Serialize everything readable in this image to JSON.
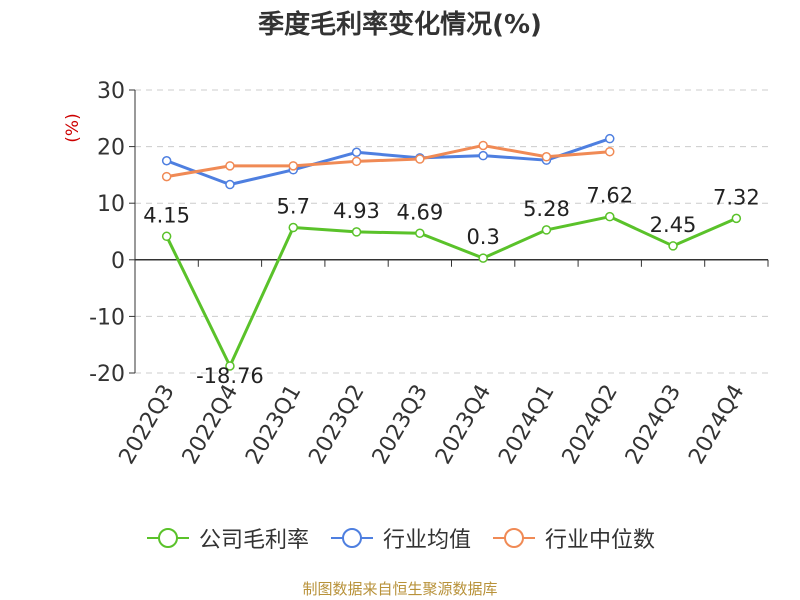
{
  "title": "季度毛利率变化情况(%)",
  "source": "制图数据来自恒生聚源数据库",
  "colors": {
    "company": "#5ac22a",
    "industry_avg": "#4e7fe0",
    "industry_median": "#f08a55",
    "unit_label": "#cc0000",
    "source": "#b8923a"
  },
  "chart_data": {
    "type": "line",
    "title": "季度毛利率变化情况(%)",
    "ylabel": "(%)",
    "xlabel": "",
    "ylim": [
      -20,
      30
    ],
    "yticks": [
      -20,
      -10,
      0,
      10,
      20,
      30
    ],
    "grid": true,
    "legend_position": "bottom",
    "categories": [
      "2022Q3",
      "2022Q4",
      "2023Q1",
      "2023Q2",
      "2023Q3",
      "2023Q4",
      "2024Q1",
      "2024Q2",
      "2024Q3",
      "2024Q4"
    ],
    "series": [
      {
        "name": "公司毛利率",
        "color": "#5ac22a",
        "show_labels": true,
        "values": [
          4.15,
          -18.76,
          5.7,
          4.93,
          4.69,
          0.3,
          5.28,
          7.62,
          2.45,
          7.32
        ],
        "labels": [
          "4.15",
          "-18.76",
          "5.7",
          "4.93",
          "4.69",
          "0.3",
          "5.28",
          "7.62",
          "2.45",
          "7.32"
        ]
      },
      {
        "name": "行业均值",
        "color": "#4e7fe0",
        "show_labels": false,
        "values": [
          17.5,
          13.3,
          15.9,
          19.0,
          18.0,
          18.4,
          17.6,
          21.4,
          null,
          null
        ]
      },
      {
        "name": "行业中位数",
        "color": "#f08a55",
        "show_labels": false,
        "values": [
          14.7,
          16.6,
          16.6,
          17.4,
          17.8,
          20.2,
          18.2,
          19.1,
          null,
          null
        ]
      }
    ]
  }
}
